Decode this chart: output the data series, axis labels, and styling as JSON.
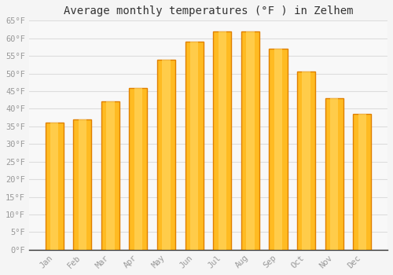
{
  "title": "Average monthly temperatures (°F ) in Zelhem",
  "months": [
    "Jan",
    "Feb",
    "Mar",
    "Apr",
    "May",
    "Jun",
    "Jul",
    "Aug",
    "Sep",
    "Oct",
    "Nov",
    "Dec"
  ],
  "values": [
    36,
    37,
    42,
    46,
    54,
    59,
    62,
    62,
    57,
    50.5,
    43,
    38.5
  ],
  "bar_color_face": "#FFBB22",
  "bar_color_edge": "#E08000",
  "ylim": [
    0,
    65
  ],
  "yticks": [
    0,
    5,
    10,
    15,
    20,
    25,
    30,
    35,
    40,
    45,
    50,
    55,
    60,
    65
  ],
  "ytick_labels": [
    "0°F",
    "5°F",
    "10°F",
    "15°F",
    "20°F",
    "25°F",
    "30°F",
    "35°F",
    "40°F",
    "45°F",
    "50°F",
    "55°F",
    "60°F",
    "65°F"
  ],
  "title_fontsize": 10,
  "tick_fontsize": 7.5,
  "bg_color": "#F5F5F5",
  "plot_bg_color": "#F8F8F8",
  "grid_color": "#DDDDDD",
  "tick_color": "#999999",
  "spine_color": "#333333",
  "bar_width": 0.65
}
